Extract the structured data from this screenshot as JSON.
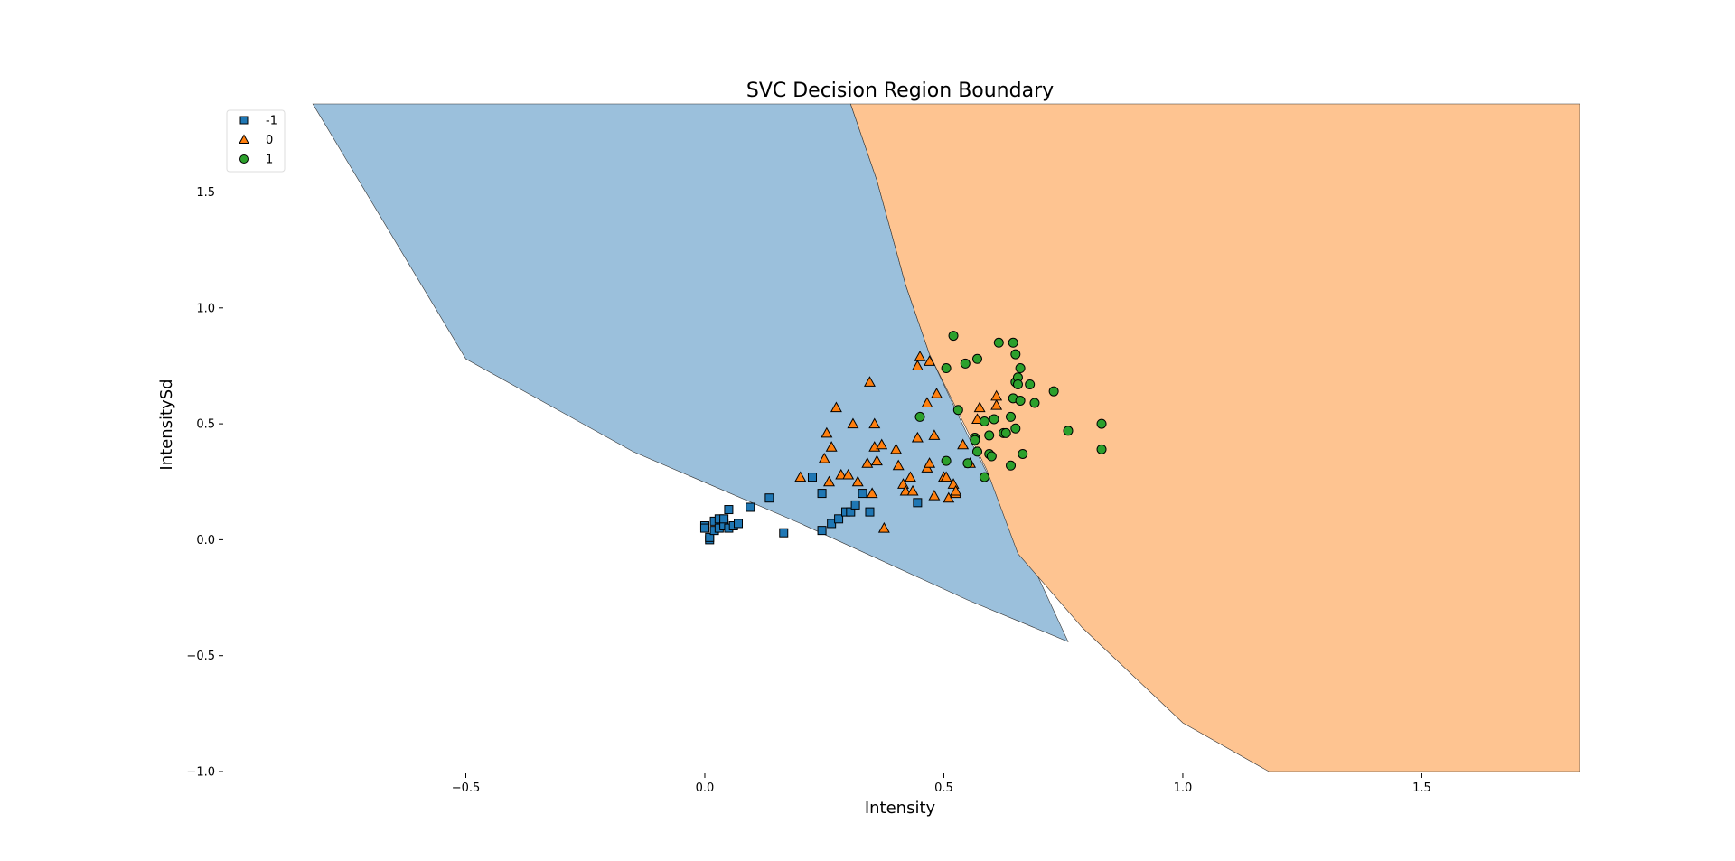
{
  "chart_data": {
    "type": "scatter",
    "title": "SVC Decision Region Boundary",
    "xlabel": "Intensity",
    "ylabel": "IntensitySd",
    "xlim": [
      -1.0,
      1.83
    ],
    "ylim": [
      -1.0,
      1.88
    ],
    "xticks": [
      -0.5,
      0.0,
      0.5,
      1.0,
      1.5
    ],
    "xtick_labels": [
      "−0.5",
      "0.0",
      "0.5",
      "1.0",
      "1.5"
    ],
    "yticks": [
      -1.0,
      -0.5,
      0.0,
      0.5,
      1.0,
      1.5
    ],
    "ytick_labels": [
      "−1.0",
      "−0.5",
      "0.0",
      "0.5",
      "1.0",
      "1.5"
    ],
    "grid": false,
    "legend_position": "top-left",
    "regions": [
      {
        "class": "-1",
        "color": "#9bc0dc",
        "polygon": [
          [
            -0.82,
            1.88
          ],
          [
            0.305,
            1.88
          ],
          [
            0.36,
            1.55
          ],
          [
            0.42,
            1.1
          ],
          [
            0.47,
            0.8
          ],
          [
            0.55,
            0.45
          ],
          [
            0.65,
            0.05
          ],
          [
            0.76,
            -0.44
          ],
          [
            0.55,
            -0.26
          ],
          [
            0.2,
            0.07
          ],
          [
            -0.15,
            0.38
          ],
          [
            -0.5,
            0.78
          ]
        ]
      },
      {
        "class": "0",
        "color": "#fec491",
        "polygon": [
          [
            0.305,
            1.88
          ],
          [
            1.83,
            1.88
          ],
          [
            1.83,
            -1.0
          ],
          [
            1.18,
            -1.0
          ],
          [
            1.0,
            -0.79
          ],
          [
            0.79,
            -0.38
          ],
          [
            0.655,
            -0.06
          ],
          [
            0.59,
            0.3
          ],
          [
            0.47,
            0.8
          ],
          [
            0.42,
            1.1
          ],
          [
            0.36,
            1.55
          ]
        ]
      }
    ],
    "series": [
      {
        "name": "-1",
        "marker": "square",
        "color": "#1f77b4",
        "points": [
          [
            0.0,
            0.06
          ],
          [
            0.0,
            0.05
          ],
          [
            0.01,
            0.0
          ],
          [
            0.01,
            0.01
          ],
          [
            0.02,
            0.04
          ],
          [
            0.02,
            0.08
          ],
          [
            0.03,
            0.05
          ],
          [
            0.03,
            0.09
          ],
          [
            0.04,
            0.07
          ],
          [
            0.04,
            0.06
          ],
          [
            0.04,
            0.09
          ],
          [
            0.05,
            0.13
          ],
          [
            0.05,
            0.05
          ],
          [
            0.06,
            0.06
          ],
          [
            0.07,
            0.07
          ],
          [
            0.095,
            0.14
          ],
          [
            0.135,
            0.18
          ],
          [
            0.165,
            0.03
          ],
          [
            0.225,
            0.27
          ],
          [
            0.245,
            0.2
          ],
          [
            0.245,
            0.04
          ],
          [
            0.265,
            0.07
          ],
          [
            0.28,
            0.09
          ],
          [
            0.295,
            0.12
          ],
          [
            0.305,
            0.12
          ],
          [
            0.315,
            0.15
          ],
          [
            0.33,
            0.2
          ],
          [
            0.345,
            0.12
          ],
          [
            0.445,
            0.16
          ]
        ]
      },
      {
        "name": "0",
        "marker": "triangle",
        "color": "#ff7f0e",
        "points": [
          [
            0.2,
            0.27
          ],
          [
            0.25,
            0.35
          ],
          [
            0.255,
            0.46
          ],
          [
            0.26,
            0.25
          ],
          [
            0.265,
            0.4
          ],
          [
            0.275,
            0.57
          ],
          [
            0.285,
            0.28
          ],
          [
            0.3,
            0.28
          ],
          [
            0.31,
            0.5
          ],
          [
            0.32,
            0.25
          ],
          [
            0.34,
            0.33
          ],
          [
            0.345,
            0.68
          ],
          [
            0.35,
            0.2
          ],
          [
            0.355,
            0.5
          ],
          [
            0.355,
            0.4
          ],
          [
            0.36,
            0.34
          ],
          [
            0.37,
            0.41
          ],
          [
            0.375,
            0.05
          ],
          [
            0.4,
            0.39
          ],
          [
            0.405,
            0.32
          ],
          [
            0.415,
            0.24
          ],
          [
            0.42,
            0.21
          ],
          [
            0.43,
            0.27
          ],
          [
            0.435,
            0.21
          ],
          [
            0.445,
            0.44
          ],
          [
            0.445,
            0.75
          ],
          [
            0.45,
            0.79
          ],
          [
            0.465,
            0.59
          ],
          [
            0.465,
            0.31
          ],
          [
            0.47,
            0.33
          ],
          [
            0.47,
            0.77
          ],
          [
            0.48,
            0.45
          ],
          [
            0.485,
            0.63
          ],
          [
            0.48,
            0.19
          ],
          [
            0.5,
            0.27
          ],
          [
            0.505,
            0.27
          ],
          [
            0.51,
            0.18
          ],
          [
            0.52,
            0.24
          ],
          [
            0.525,
            0.2
          ],
          [
            0.525,
            0.21
          ],
          [
            0.54,
            0.41
          ],
          [
            0.555,
            0.33
          ],
          [
            0.57,
            0.52
          ],
          [
            0.575,
            0.57
          ],
          [
            0.61,
            0.58
          ],
          [
            0.61,
            0.62
          ]
        ]
      },
      {
        "name": "1",
        "marker": "circle",
        "color": "#2ca02c",
        "points": [
          [
            0.45,
            0.53
          ],
          [
            0.505,
            0.34
          ],
          [
            0.505,
            0.74
          ],
          [
            0.52,
            0.88
          ],
          [
            0.53,
            0.56
          ],
          [
            0.545,
            0.76
          ],
          [
            0.55,
            0.33
          ],
          [
            0.565,
            0.44
          ],
          [
            0.565,
            0.43
          ],
          [
            0.57,
            0.38
          ],
          [
            0.57,
            0.78
          ],
          [
            0.585,
            0.27
          ],
          [
            0.585,
            0.51
          ],
          [
            0.595,
            0.45
          ],
          [
            0.595,
            0.37
          ],
          [
            0.6,
            0.36
          ],
          [
            0.605,
            0.52
          ],
          [
            0.615,
            0.85
          ],
          [
            0.625,
            0.46
          ],
          [
            0.63,
            0.46
          ],
          [
            0.64,
            0.53
          ],
          [
            0.64,
            0.32
          ],
          [
            0.645,
            0.61
          ],
          [
            0.645,
            0.85
          ],
          [
            0.65,
            0.48
          ],
          [
            0.65,
            0.8
          ],
          [
            0.65,
            0.68
          ],
          [
            0.655,
            0.7
          ],
          [
            0.655,
            0.67
          ],
          [
            0.66,
            0.74
          ],
          [
            0.66,
            0.6
          ],
          [
            0.665,
            0.37
          ],
          [
            0.68,
            0.67
          ],
          [
            0.69,
            0.59
          ],
          [
            0.73,
            0.64
          ],
          [
            0.76,
            0.47
          ],
          [
            0.83,
            0.39
          ],
          [
            0.83,
            0.5
          ]
        ]
      }
    ]
  }
}
